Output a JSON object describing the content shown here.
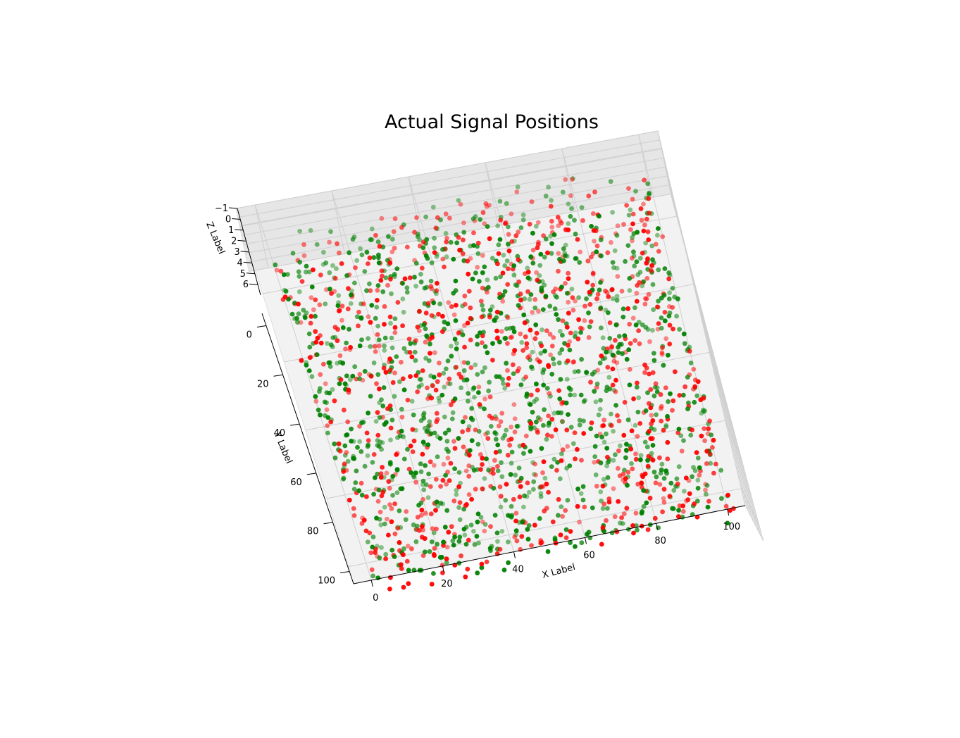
{
  "chart_data": {
    "type": "scatter",
    "projection": "3d",
    "title": "Actual Signal Positions",
    "xlabel": "X Label",
    "ylabel": "Y Label",
    "zlabel": "Z Label",
    "xlim": [
      -5,
      105
    ],
    "ylim": [
      -5,
      105
    ],
    "zlim": [
      -1,
      6
    ],
    "x_ticks": [
      0,
      20,
      40,
      60,
      80,
      100
    ],
    "y_ticks": [
      0,
      20,
      40,
      60,
      80,
      100
    ],
    "z_ticks": [
      -1,
      0,
      1,
      2,
      3,
      4,
      5,
      6
    ],
    "x_tick_labels": [
      "0",
      "20",
      "40",
      "60",
      "80",
      "100"
    ],
    "y_tick_labels": [
      "0",
      "20",
      "40",
      "60",
      "80",
      "100"
    ],
    "z_tick_labels": [
      "−1",
      "0",
      "1",
      "2",
      "3",
      "4",
      "5",
      "6"
    ],
    "grid": true,
    "pane_color": "#f2f2f2",
    "series": [
      {
        "color": "#008000",
        "count": 1100,
        "x_range": [
          0,
          100
        ],
        "y_range": [
          0,
          100
        ],
        "z_values": [
          0,
          1,
          2,
          3,
          4,
          5
        ],
        "marker": "o"
      },
      {
        "color": "#ff0000",
        "count": 900,
        "x_range": [
          0,
          100
        ],
        "y_range": [
          0,
          100
        ],
        "z_values": [
          0,
          1,
          2,
          3,
          4,
          5
        ],
        "marker": "o"
      }
    ]
  }
}
